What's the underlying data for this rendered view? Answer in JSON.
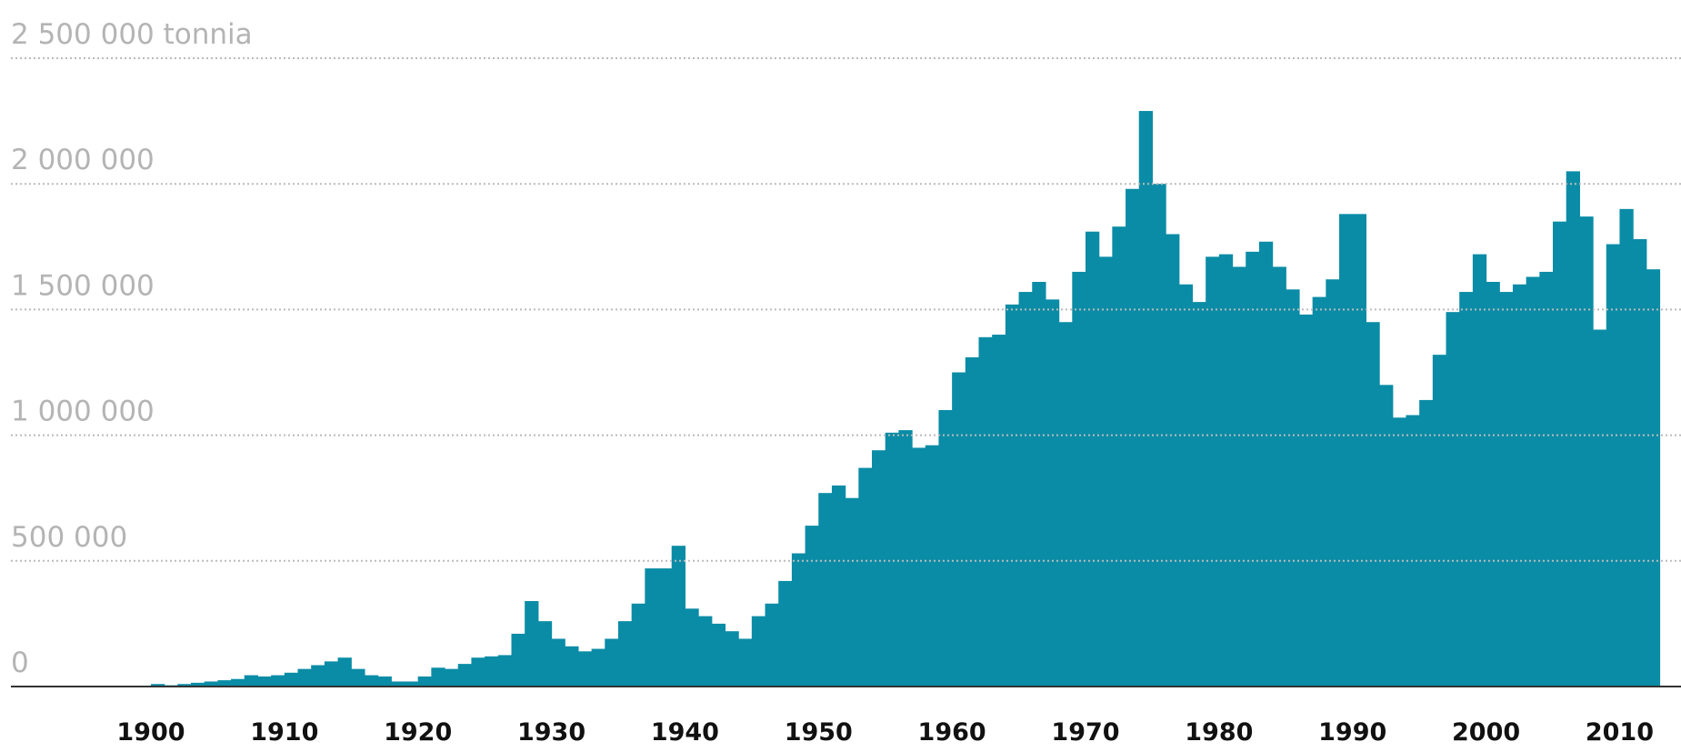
{
  "chart_data": {
    "type": "bar",
    "color": "#0a8ca6",
    "grid": true,
    "x": [
      1900,
      1901,
      1902,
      1903,
      1904,
      1905,
      1906,
      1907,
      1908,
      1909,
      1910,
      1911,
      1912,
      1913,
      1914,
      1915,
      1916,
      1917,
      1918,
      1919,
      1920,
      1921,
      1922,
      1923,
      1924,
      1925,
      1926,
      1927,
      1928,
      1929,
      1930,
      1931,
      1932,
      1933,
      1934,
      1935,
      1936,
      1937,
      1938,
      1939,
      1940,
      1941,
      1942,
      1943,
      1944,
      1945,
      1946,
      1947,
      1948,
      1949,
      1950,
      1951,
      1952,
      1953,
      1954,
      1955,
      1956,
      1957,
      1958,
      1959,
      1960,
      1961,
      1962,
      1963,
      1964,
      1965,
      1966,
      1967,
      1968,
      1969,
      1970,
      1971,
      1972,
      1973,
      1974,
      1975,
      1976,
      1977,
      1978,
      1979,
      1980,
      1981,
      1982,
      1983,
      1984,
      1985,
      1986,
      1987,
      1988,
      1989,
      1990,
      1991,
      1992,
      1993,
      1994,
      1995,
      1996,
      1997,
      1998,
      1999,
      2000,
      2001,
      2002,
      2003,
      2004,
      2005,
      2006,
      2007,
      2008,
      2009,
      2010,
      2011,
      2012
    ],
    "values": [
      10000,
      5000,
      10000,
      15000,
      20000,
      25000,
      30000,
      45000,
      40000,
      45000,
      55000,
      70000,
      85000,
      100000,
      115000,
      70000,
      45000,
      40000,
      20000,
      20000,
      40000,
      75000,
      70000,
      90000,
      115000,
      120000,
      125000,
      210000,
      340000,
      260000,
      190000,
      160000,
      140000,
      150000,
      190000,
      260000,
      330000,
      470000,
      470000,
      560000,
      310000,
      280000,
      250000,
      220000,
      190000,
      280000,
      330000,
      420000,
      530000,
      640000,
      770000,
      800000,
      750000,
      870000,
      940000,
      1010000,
      1020000,
      950000,
      960000,
      1100000,
      1250000,
      1310000,
      1390000,
      1400000,
      1520000,
      1570000,
      1610000,
      1540000,
      1450000,
      1650000,
      1810000,
      1710000,
      1830000,
      1980000,
      2290000,
      2000000,
      1800000,
      1600000,
      1530000,
      1710000,
      1720000,
      1670000,
      1730000,
      1770000,
      1670000,
      1580000,
      1480000,
      1550000,
      1620000,
      1880000,
      1880000,
      1450000,
      1200000,
      1070000,
      1080000,
      1140000,
      1320000,
      1490000,
      1570000,
      1720000,
      1610000,
      1570000,
      1600000,
      1630000,
      1650000,
      1850000,
      2050000,
      1870000,
      1420000,
      1760000,
      1900000,
      1780000,
      1660000
    ],
    "xlim": [
      1888.7,
      2014.6
    ],
    "xticks": [
      1900,
      1910,
      1920,
      1930,
      1940,
      1950,
      1960,
      1970,
      1980,
      1990,
      2000,
      2010
    ],
    "ylim": [
      0,
      2500000
    ],
    "yticks": [
      0,
      {
        "value": 500000,
        "label": "500 000"
      },
      {
        "value": 1000000,
        "label": "1 000 000"
      },
      {
        "value": 1500000,
        "label": "1 500 000"
      },
      {
        "value": 2000000,
        "label": "2 000 000"
      },
      {
        "value": 2500000,
        "label": "2 500 000 tonnia"
      }
    ]
  }
}
